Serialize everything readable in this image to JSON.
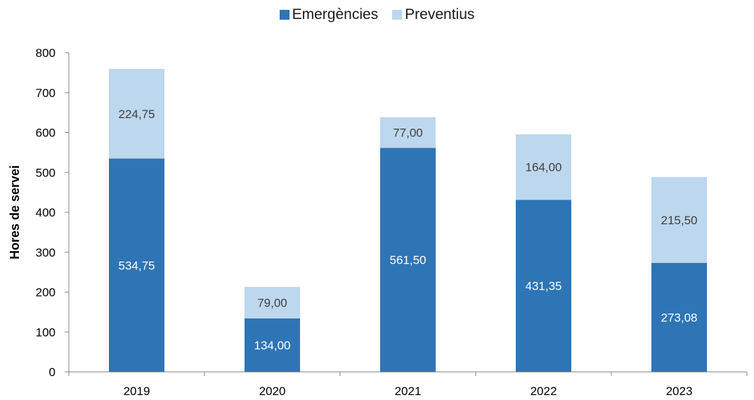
{
  "chart_data": {
    "type": "bar",
    "stacked": true,
    "categories": [
      "2019",
      "2020",
      "2021",
      "2022",
      "2023"
    ],
    "series": [
      {
        "name": "Emergències",
        "values": [
          534.75,
          134.0,
          561.5,
          431.35,
          273.08
        ],
        "labels": [
          "534,75",
          "134,00",
          "561,50",
          "431,35",
          "273,08"
        ],
        "color": "#2e75b6",
        "label_color": "#ffffff"
      },
      {
        "name": "Preventius",
        "values": [
          224.75,
          79.0,
          77.0,
          164.0,
          215.5
        ],
        "labels": [
          "224,75",
          "79,00",
          "77,00",
          "164,00",
          "215,50"
        ],
        "color": "#bdd7ee",
        "label_color": "#404040"
      }
    ],
    "title": "",
    "xlabel": "",
    "ylabel": "Hores de servei",
    "ylim": [
      0,
      800
    ],
    "yticks": [
      "0",
      "100",
      "200",
      "300",
      "400",
      "500",
      "600",
      "700",
      "800"
    ],
    "grid": false,
    "legend_position": "top-center"
  }
}
